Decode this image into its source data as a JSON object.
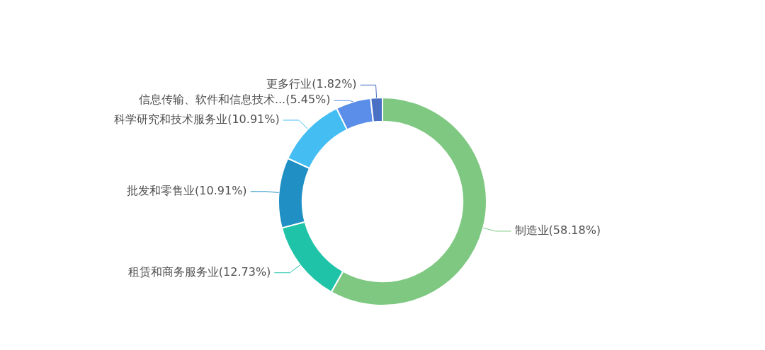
{
  "chart_data": {
    "type": "donut",
    "categories": [
      "制造业(58.18%)",
      "租赁和商务服务业(12.73%)",
      "批发和零售业(10.91%)",
      "科学研究和技术服务业(10.91%)",
      "信息传输、软件和信息技术...(5.45%)",
      "更多行业(1.82%)"
    ],
    "values": [
      58.18,
      12.73,
      10.91,
      10.91,
      5.45,
      1.82
    ],
    "colors": [
      "#7ec882",
      "#1fc4a8",
      "#1f8fc4",
      "#44bdf3",
      "#5a8ee8",
      "#4a70c4"
    ]
  }
}
